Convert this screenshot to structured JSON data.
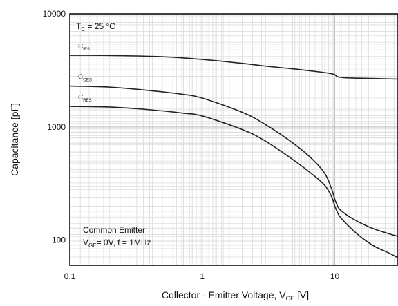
{
  "chart_data": {
    "type": "line",
    "title": "",
    "xlabel": {
      "text": "Collector - Emitter Voltage, V",
      "sub": "CE",
      "unit": " [V]"
    },
    "ylabel": "Capacitance [pF]",
    "x_scale": "log",
    "y_scale": "log",
    "xlim": [
      0.1,
      30
    ],
    "ylim": [
      60,
      10000
    ],
    "x_ticks": [
      {
        "value": 0.1,
        "label": "0.1"
      },
      {
        "value": 1,
        "label": "1"
      },
      {
        "value": 10,
        "label": "10"
      }
    ],
    "y_ticks": [
      {
        "value": 100,
        "label": "100"
      },
      {
        "value": 1000,
        "label": "1000"
      },
      {
        "value": 10000,
        "label": "10000"
      }
    ],
    "grid": true,
    "annotations": {
      "temperature": {
        "main": "T",
        "sub": "C",
        "rest": " = 25 °C"
      },
      "condition_line1": "Common Emitter",
      "condition_line2": {
        "main": "V",
        "sub": "GE",
        "rest": "= 0V, f = 1MHz"
      }
    },
    "series": [
      {
        "name": "C_IES",
        "label_main": "C",
        "label_sub": "IES",
        "x": [
          0.1,
          0.2,
          0.5,
          1,
          2,
          3,
          5,
          8,
          9.5,
          10,
          10.5,
          12,
          15,
          20,
          30
        ],
        "y": [
          4300,
          4280,
          4180,
          3950,
          3650,
          3450,
          3250,
          3050,
          2950,
          2900,
          2780,
          2720,
          2700,
          2680,
          2650
        ]
      },
      {
        "name": "C_OES",
        "label_main": "C",
        "label_sub": "OES",
        "x": [
          0.1,
          0.2,
          0.4,
          0.7,
          1,
          2,
          3,
          5,
          7,
          8.5,
          9.5,
          10,
          10.5,
          11,
          13,
          16,
          20,
          25,
          30
        ],
        "y": [
          2300,
          2250,
          2100,
          1950,
          1800,
          1350,
          1050,
          700,
          500,
          380,
          280,
          230,
          200,
          185,
          160,
          140,
          125,
          115,
          108
        ]
      },
      {
        "name": "C_RES",
        "label_main": "C",
        "label_sub": "RES",
        "x": [
          0.1,
          0.2,
          0.4,
          0.7,
          1,
          2,
          3,
          5,
          7,
          8.5,
          9.5,
          10,
          10.5,
          11,
          13,
          16,
          20,
          25,
          30
        ],
        "y": [
          1520,
          1500,
          1420,
          1330,
          1250,
          950,
          750,
          500,
          370,
          300,
          240,
          200,
          175,
          160,
          130,
          105,
          88,
          78,
          70
        ]
      }
    ]
  }
}
